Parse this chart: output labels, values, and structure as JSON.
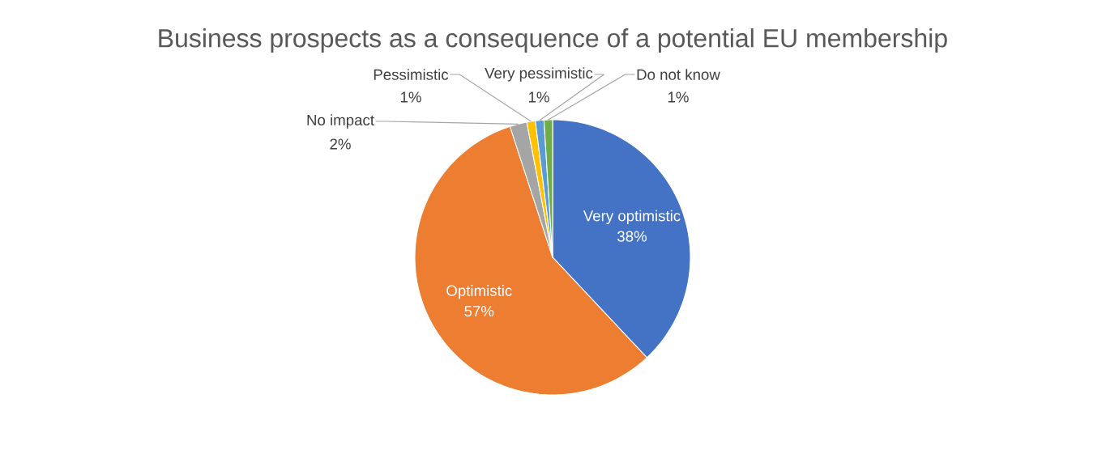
{
  "chart_data": {
    "type": "pie",
    "title": "Business prospects as a consequence of a potential EU membership",
    "categories": [
      "Very optimistic",
      "Optimistic",
      "No impact",
      "Pessimistic",
      "Very pessimistic",
      "Do not know"
    ],
    "values": [
      38,
      57,
      2,
      1,
      1,
      1
    ],
    "colors": [
      "#4472c4",
      "#ed7d31",
      "#a5a5a5",
      "#ffc000",
      "#5b9bd5",
      "#70ad47"
    ],
    "value_labels": [
      "38%",
      "57%",
      "2%",
      "1%",
      "1%",
      "1%"
    ]
  }
}
